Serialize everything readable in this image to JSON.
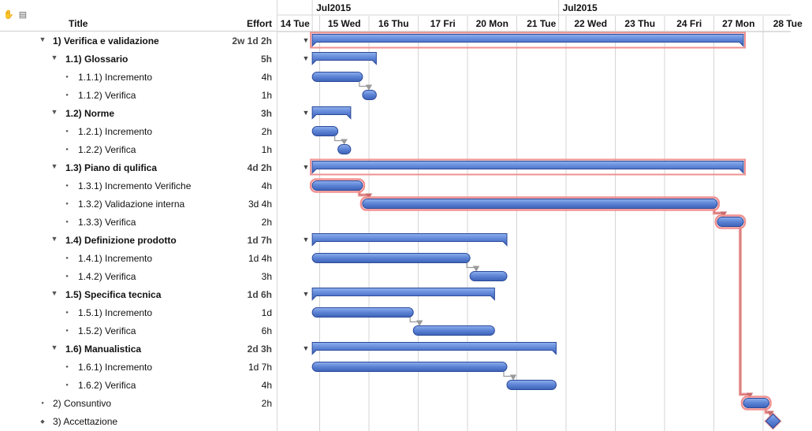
{
  "header": {
    "toolbar_icons": [
      "hand-icon",
      "document-icon"
    ],
    "col_title": "Title",
    "col_effort": "Effort"
  },
  "timeline": {
    "months": [
      {
        "label": "Jul2015",
        "offset_days": 0.85
      },
      {
        "label": "Jul2015",
        "offset_days": 5.85
      }
    ],
    "days": [
      "14 Tue",
      "15 Wed",
      "16 Thu",
      "17 Fri",
      "20 Mon",
      "21 Tue",
      "22 Wed",
      "23 Thu",
      "24 Fri",
      "27 Mon",
      "28 Tue"
    ]
  },
  "rows": [
    {
      "title": "1)  Verifica e validazione",
      "effort": "2w 1d 2h",
      "level": 0,
      "type": "summary",
      "start": 0.85,
      "end": 9.6,
      "critical": true
    },
    {
      "title": "1.1)  Glossario",
      "effort": "5h",
      "level": 1,
      "type": "summary",
      "start": 0.85,
      "end": 2.15
    },
    {
      "title": "1.1.1)  Incremento",
      "effort": "4h",
      "level": 2,
      "type": "task",
      "start": 0.85,
      "end": 1.87
    },
    {
      "title": "1.1.2)  Verifica",
      "effort": "1h",
      "level": 2,
      "type": "task",
      "start": 1.87,
      "end": 2.15
    },
    {
      "title": "1.2)  Norme",
      "effort": "3h",
      "level": 1,
      "type": "summary",
      "start": 0.85,
      "end": 1.63
    },
    {
      "title": "1.2.1)  Incremento",
      "effort": "2h",
      "level": 2,
      "type": "task",
      "start": 0.85,
      "end": 1.37
    },
    {
      "title": "1.2.2)  Verifica",
      "effort": "1h",
      "level": 2,
      "type": "task",
      "start": 1.37,
      "end": 1.63
    },
    {
      "title": "1.3)  Piano di qulifica",
      "effort": "4d 2h",
      "level": 1,
      "type": "summary",
      "start": 0.85,
      "end": 9.6,
      "critical": true
    },
    {
      "title": "1.3.1)  Incremento Verifiche",
      "effort": "4h",
      "level": 2,
      "type": "task",
      "start": 0.85,
      "end": 1.87,
      "critical": true
    },
    {
      "title": "1.3.2)  Validazione interna",
      "effort": "3d 4h",
      "level": 2,
      "type": "task",
      "start": 1.87,
      "end": 9.07,
      "critical": true
    },
    {
      "title": "1.3.3)  Verifica",
      "effort": "2h",
      "level": 2,
      "type": "task",
      "start": 9.07,
      "end": 9.6,
      "critical": true
    },
    {
      "title": "1.4)  Definizione prodotto",
      "effort": "1d 7h",
      "level": 1,
      "type": "summary",
      "start": 0.85,
      "end": 4.8
    },
    {
      "title": "1.4.1)  Incremento",
      "effort": "1d 4h",
      "level": 2,
      "type": "task",
      "start": 0.85,
      "end": 4.05
    },
    {
      "title": "1.4.2)  Verifica",
      "effort": "3h",
      "level": 2,
      "type": "task",
      "start": 4.05,
      "end": 4.8
    },
    {
      "title": "1.5)  Specifica tecnica",
      "effort": "1d 6h",
      "level": 1,
      "type": "summary",
      "start": 0.85,
      "end": 4.55
    },
    {
      "title": "1.5.1)  Incremento",
      "effort": "1d",
      "level": 2,
      "type": "task",
      "start": 0.85,
      "end": 2.9
    },
    {
      "title": "1.5.2)  Verifica",
      "effort": "6h",
      "level": 2,
      "type": "task",
      "start": 2.9,
      "end": 4.55
    },
    {
      "title": "1.6)  Manualistica",
      "effort": "2d 3h",
      "level": 1,
      "type": "summary",
      "start": 0.85,
      "end": 5.8
    },
    {
      "title": "1.6.1)  Incremento",
      "effort": "1d 7h",
      "level": 2,
      "type": "task",
      "start": 0.85,
      "end": 4.8
    },
    {
      "title": "1.6.2)  Verifica",
      "effort": "4h",
      "level": 2,
      "type": "task",
      "start": 4.8,
      "end": 5.8
    },
    {
      "title": "2)  Consuntivo",
      "effort": "2h",
      "level": 0,
      "type": "task",
      "start": 9.6,
      "end": 10.12,
      "critical": true
    },
    {
      "title": "3)  Accettazione",
      "effort": "",
      "level": 0,
      "type": "milestone",
      "start": 10.12,
      "end": 10.12,
      "critical": true
    }
  ],
  "dependencies": [
    [
      2,
      3
    ],
    [
      5,
      6
    ],
    [
      8,
      9
    ],
    [
      9,
      10
    ],
    [
      12,
      13
    ],
    [
      15,
      16
    ],
    [
      18,
      19
    ],
    [
      10,
      20
    ],
    [
      20,
      21
    ]
  ],
  "colors": {
    "bar_fill": "#5b82d4",
    "bar_stroke": "#2c4a9a",
    "critical_halo": "#f09090",
    "grid_line": "#d4d4d4",
    "arrow": "#9a9a9a"
  }
}
